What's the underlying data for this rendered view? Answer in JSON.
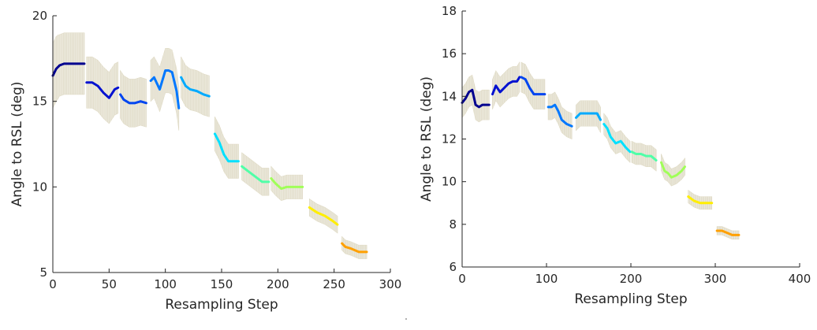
{
  "chart_data": [
    {
      "type": "line",
      "xlabel": "Resampling Step",
      "ylabel": "Angle to RSL (deg)",
      "xlim": [
        0,
        300
      ],
      "ylim": [
        5,
        20
      ],
      "xticks": [
        0,
        50,
        100,
        150,
        200,
        250,
        300
      ],
      "yticks": [
        5,
        10,
        15,
        20
      ],
      "grid": false,
      "error_band_color": "#ece9dc",
      "series": [
        {
          "color": "#00008f",
          "x": [
            0,
            3,
            6,
            10,
            15,
            20,
            28
          ],
          "y": [
            16.5,
            16.9,
            17.1,
            17.2,
            17.2,
            17.2,
            17.2
          ],
          "err": [
            1.9,
            1.9,
            1.8,
            1.8,
            1.8,
            1.8,
            1.8
          ]
        },
        {
          "color": "#0010d0",
          "x": [
            30,
            35,
            40,
            45,
            50,
            55,
            58
          ],
          "y": [
            16.1,
            16.1,
            15.9,
            15.5,
            15.2,
            15.7,
            15.8
          ],
          "err": [
            1.5,
            1.5,
            1.5,
            1.5,
            1.5,
            1.5,
            1.5
          ]
        },
        {
          "color": "#0045f0",
          "x": [
            60,
            63,
            68,
            73,
            78,
            83
          ],
          "y": [
            15.4,
            15.1,
            14.9,
            14.9,
            15.0,
            14.9
          ],
          "err": [
            1.4,
            1.4,
            1.4,
            1.4,
            1.4,
            1.4
          ]
        },
        {
          "color": "#0077ff",
          "x": [
            87,
            90,
            95,
            100,
            103,
            106,
            110,
            112
          ],
          "y": [
            16.2,
            16.4,
            15.7,
            16.8,
            16.8,
            16.7,
            15.6,
            14.6
          ],
          "err": [
            1.2,
            1.2,
            1.3,
            1.3,
            1.3,
            1.3,
            1.3,
            1.3
          ]
        },
        {
          "color": "#00aaff",
          "x": [
            114,
            118,
            122,
            128,
            134,
            139
          ],
          "y": [
            16.4,
            15.9,
            15.7,
            15.6,
            15.4,
            15.3
          ],
          "err": [
            1.2,
            1.2,
            1.2,
            1.2,
            1.2,
            1.2
          ]
        },
        {
          "color": "#00e0ff",
          "x": [
            144,
            148,
            152,
            156,
            160,
            165
          ],
          "y": [
            13.1,
            12.6,
            11.9,
            11.5,
            11.5,
            11.5
          ],
          "err": [
            1.0,
            1.0,
            1.0,
            1.0,
            1.0,
            1.0
          ]
        },
        {
          "color": "#50ffa8",
          "x": [
            168,
            174,
            180,
            186,
            192
          ],
          "y": [
            11.2,
            10.9,
            10.6,
            10.3,
            10.3
          ],
          "err": [
            0.8,
            0.8,
            0.8,
            0.8,
            0.8
          ]
        },
        {
          "color": "#a0ff58",
          "x": [
            194,
            198,
            203,
            208,
            215,
            222
          ],
          "y": [
            10.5,
            10.2,
            9.9,
            10.0,
            10.0,
            10.0
          ],
          "err": [
            0.7,
            0.7,
            0.7,
            0.7,
            0.7,
            0.7
          ]
        },
        {
          "color": "#ffee00",
          "x": [
            228,
            235,
            242,
            249,
            253
          ],
          "y": [
            8.8,
            8.5,
            8.3,
            8.0,
            7.8
          ],
          "err": [
            0.5,
            0.5,
            0.5,
            0.5,
            0.5
          ]
        },
        {
          "color": "#ffa000",
          "x": [
            257,
            260,
            265,
            272,
            279
          ],
          "y": [
            6.7,
            6.5,
            6.4,
            6.2,
            6.2
          ],
          "err": [
            0.4,
            0.4,
            0.4,
            0.4,
            0.4
          ]
        }
      ]
    },
    {
      "type": "line",
      "xlabel": "Resampling Step",
      "ylabel": "Angle to RSL (deg)",
      "xlim": [
        0,
        400
      ],
      "ylim": [
        6,
        18
      ],
      "xticks": [
        0,
        100,
        200,
        300,
        400
      ],
      "yticks": [
        6,
        8,
        10,
        12,
        14,
        16,
        18
      ],
      "grid": false,
      "error_band_color": "#ece9dc",
      "series": [
        {
          "color": "#00008f",
          "x": [
            0,
            4,
            8,
            12,
            16,
            20,
            24,
            28,
            32
          ],
          "y": [
            13.7,
            13.9,
            14.2,
            14.3,
            13.6,
            13.5,
            13.6,
            13.6,
            13.6
          ],
          "err": [
            0.7,
            0.7,
            0.7,
            0.7,
            0.7,
            0.7,
            0.7,
            0.7,
            0.7
          ]
        },
        {
          "color": "#0010d0",
          "x": [
            36,
            40,
            45,
            50,
            55,
            60,
            65,
            68
          ],
          "y": [
            14.1,
            14.5,
            14.2,
            14.4,
            14.6,
            14.7,
            14.7,
            14.9
          ],
          "err": [
            0.7,
            0.7,
            0.7,
            0.7,
            0.7,
            0.7,
            0.7,
            0.7
          ]
        },
        {
          "color": "#0045f0",
          "x": [
            70,
            75,
            80,
            85,
            90,
            98
          ],
          "y": [
            14.9,
            14.8,
            14.4,
            14.1,
            14.1,
            14.1
          ],
          "err": [
            0.7,
            0.7,
            0.7,
            0.7,
            0.7,
            0.7
          ]
        },
        {
          "color": "#0077ff",
          "x": [
            102,
            106,
            110,
            114,
            118,
            124,
            130
          ],
          "y": [
            13.5,
            13.5,
            13.6,
            13.3,
            12.9,
            12.7,
            12.6
          ],
          "err": [
            0.6,
            0.6,
            0.6,
            0.6,
            0.6,
            0.6,
            0.6
          ]
        },
        {
          "color": "#00aaff",
          "x": [
            135,
            140,
            145,
            150,
            155,
            160,
            164
          ],
          "y": [
            13.0,
            13.2,
            13.2,
            13.2,
            13.2,
            13.2,
            12.9
          ],
          "err": [
            0.6,
            0.6,
            0.6,
            0.6,
            0.6,
            0.6,
            0.6
          ]
        },
        {
          "color": "#00e0ff",
          "x": [
            168,
            172,
            176,
            182,
            188,
            194,
            199
          ],
          "y": [
            12.7,
            12.5,
            12.1,
            11.8,
            11.9,
            11.6,
            11.4
          ],
          "err": [
            0.5,
            0.5,
            0.5,
            0.5,
            0.5,
            0.5,
            0.5
          ]
        },
        {
          "color": "#50ffa8",
          "x": [
            201,
            206,
            212,
            218,
            224,
            230
          ],
          "y": [
            11.4,
            11.3,
            11.3,
            11.2,
            11.2,
            11.0
          ],
          "err": [
            0.5,
            0.5,
            0.5,
            0.5,
            0.5,
            0.5
          ]
        },
        {
          "color": "#a0ff58",
          "x": [
            236,
            240,
            244,
            248,
            254,
            260,
            264
          ],
          "y": [
            10.9,
            10.5,
            10.4,
            10.2,
            10.3,
            10.5,
            10.7
          ],
          "err": [
            0.4,
            0.4,
            0.4,
            0.4,
            0.4,
            0.4,
            0.4
          ]
        },
        {
          "color": "#ffee00",
          "x": [
            268,
            275,
            282,
            290,
            296
          ],
          "y": [
            9.3,
            9.1,
            9.0,
            9.0,
            9.0
          ],
          "err": [
            0.3,
            0.3,
            0.3,
            0.3,
            0.3
          ]
        },
        {
          "color": "#ffa000",
          "x": [
            302,
            308,
            314,
            320,
            328
          ],
          "y": [
            7.7,
            7.7,
            7.6,
            7.5,
            7.5
          ],
          "err": [
            0.2,
            0.2,
            0.2,
            0.2,
            0.2
          ]
        }
      ]
    }
  ]
}
